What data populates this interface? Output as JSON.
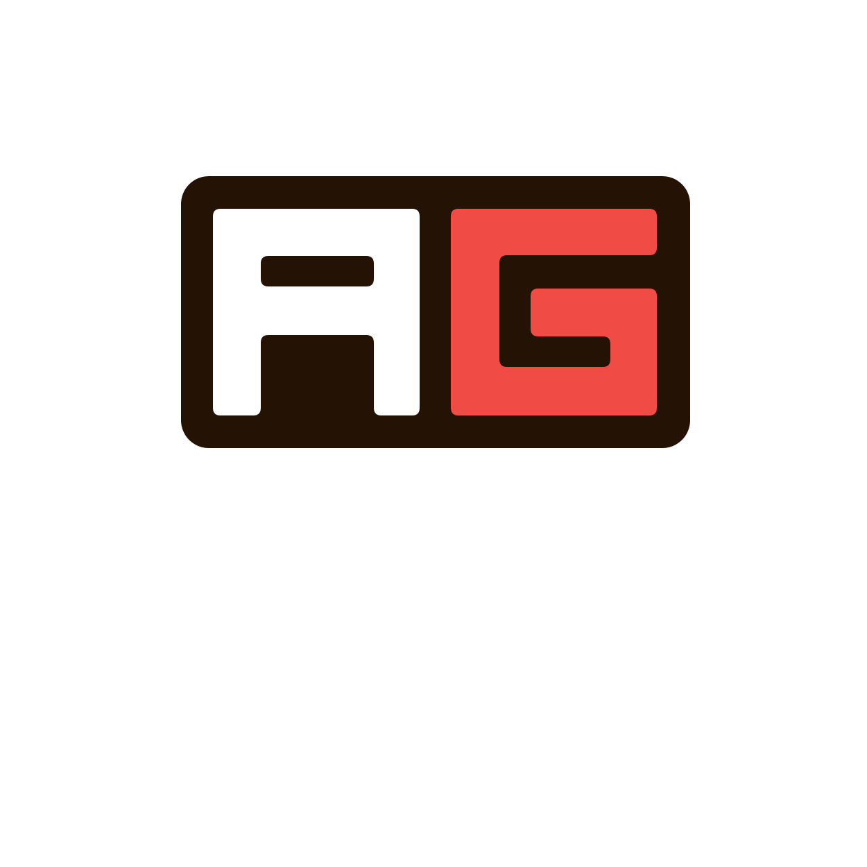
{
  "logo": {
    "lettering": "AG",
    "colors": {
      "frame": "#241305",
      "letter_a": "#ffffff",
      "letter_g": "#f04b45",
      "background": "#ffffff"
    }
  }
}
